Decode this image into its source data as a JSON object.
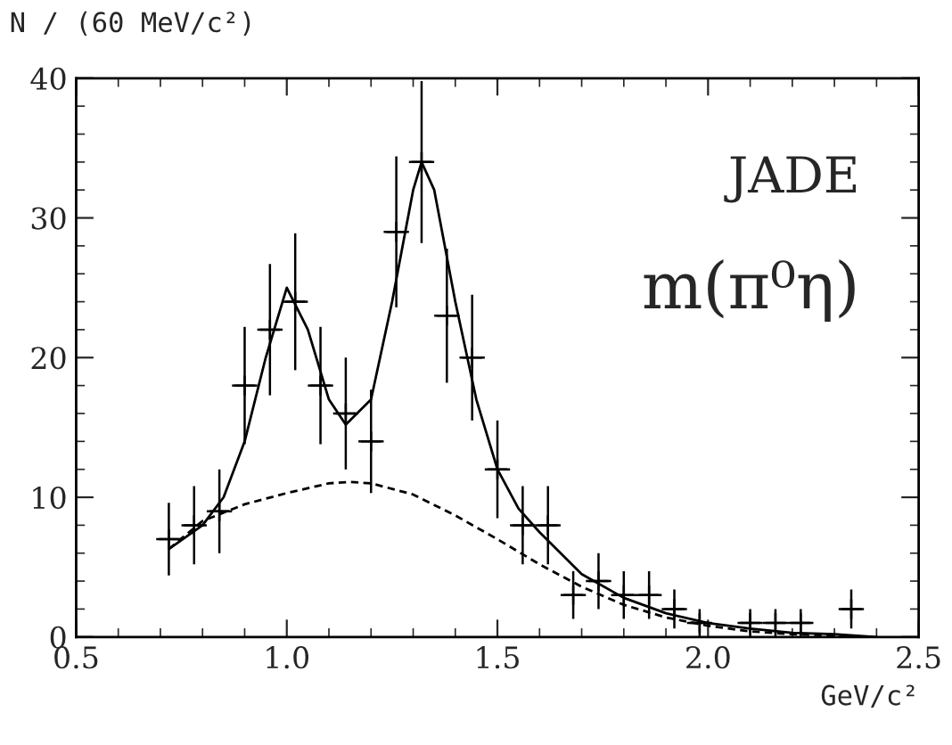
{
  "chart_data": {
    "type": "scatter",
    "xlabel": "GeV/c²",
    "ylabel": "N / (60 MeV/c²)",
    "annotations": [
      "JADE",
      "m(π⁰η)"
    ],
    "xlim": [
      0.5,
      2.5
    ],
    "xticks": [
      {
        "value": 0.5,
        "label": "0.5"
      },
      {
        "value": 1.0,
        "label": "1.0"
      },
      {
        "value": 1.5,
        "label": "1.5"
      },
      {
        "value": 2.0,
        "label": "2.0"
      },
      {
        "value": 2.5,
        "label": "2.5"
      }
    ],
    "ylim": [
      0,
      40
    ],
    "yticks": [
      0,
      10,
      20,
      30,
      40
    ],
    "grid": false,
    "legend": false,
    "series": [
      {
        "color": "#000000",
        "marker": "cross",
        "x": [
          0.72,
          0.78,
          0.84,
          0.9,
          0.96,
          1.02,
          1.08,
          1.14,
          1.2,
          1.26,
          1.32,
          1.38,
          1.44,
          1.5,
          1.56,
          1.62,
          1.68,
          1.74,
          1.8,
          1.86,
          1.92,
          1.98,
          2.1,
          2.16,
          2.22,
          2.34
        ],
        "values": [
          7,
          8,
          9,
          18,
          22,
          24,
          18,
          16,
          14,
          29,
          34,
          23,
          20,
          12,
          8,
          8,
          3,
          4,
          3,
          3,
          2,
          1,
          1,
          1,
          1,
          2
        ],
        "errors": [
          2.6,
          2.8,
          3,
          4.2,
          4.7,
          4.9,
          4.2,
          4,
          3.7,
          5.4,
          5.8,
          4.8,
          4.5,
          3.5,
          2.8,
          2.8,
          1.7,
          2,
          1.7,
          1.7,
          1.4,
          1,
          1,
          1,
          1,
          1.4
        ],
        "xerrors": [
          0.03,
          0.03,
          0.03,
          0.03,
          0.03,
          0.03,
          0.03,
          0.03,
          0.03,
          0.03,
          0.03,
          0.03,
          0.03,
          0.03,
          0.03,
          0.03,
          0.03,
          0.03,
          0.03,
          0.03,
          0.03,
          0.03,
          0.03,
          0.03,
          0.03,
          0.03
        ]
      },
      {
        "type": "line",
        "color": "#000000",
        "line_style": "solid",
        "x": [
          0.72,
          0.8,
          0.85,
          0.9,
          0.95,
          1.0,
          1.05,
          1.1,
          1.14,
          1.2,
          1.25,
          1.3,
          1.32,
          1.35,
          1.4,
          1.45,
          1.5,
          1.55,
          1.6,
          1.7,
          1.8,
          1.9,
          2.0,
          2.1,
          2.2,
          2.3,
          2.4
        ],
        "values": [
          6.3,
          8,
          10,
          14,
          20,
          25,
          22,
          17,
          15.2,
          17,
          24,
          32,
          34,
          32,
          24,
          17,
          12,
          9.2,
          7.5,
          4.5,
          2.8,
          1.7,
          1,
          0.6,
          0.3,
          0.2,
          0
        ]
      },
      {
        "type": "line",
        "color": "#000000",
        "line_style": "dashed",
        "x": [
          0.72,
          0.8,
          0.9,
          1.0,
          1.1,
          1.15,
          1.2,
          1.3,
          1.4,
          1.5,
          1.6,
          1.7,
          1.8,
          1.9,
          2.0,
          2.1,
          2.2,
          2.3,
          2.4
        ],
        "values": [
          6.3,
          8.3,
          9.5,
          10.3,
          11,
          11.1,
          11,
          10.2,
          8.7,
          7,
          5.2,
          3.6,
          2.3,
          1.4,
          0.8,
          0.4,
          0.2,
          0.1,
          0
        ]
      }
    ]
  }
}
